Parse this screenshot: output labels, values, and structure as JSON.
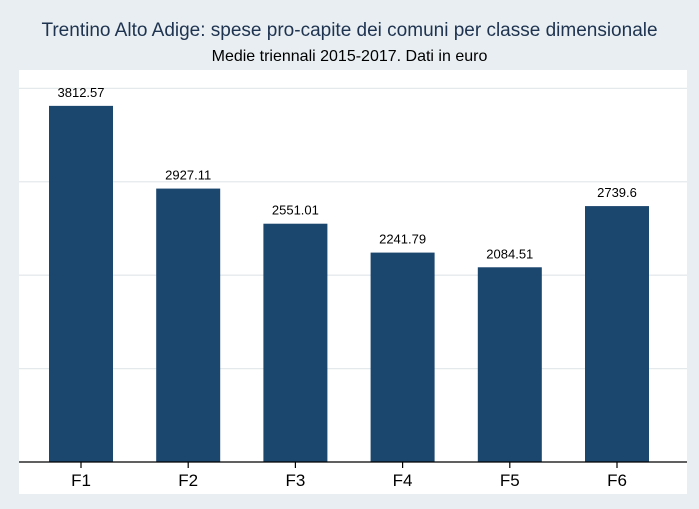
{
  "chart_data": {
    "type": "bar",
    "title": "Trentino Alto Adige: spese pro-capite dei comuni per classe dimensionale",
    "subtitle": "Medie triennali 2015-2017. Dati in euro",
    "categories": [
      "F1",
      "F2",
      "F3",
      "F4",
      "F5",
      "F6"
    ],
    "values": [
      3812.57,
      2927.11,
      2551.01,
      2241.79,
      2084.51,
      2739.6
    ],
    "value_labels": [
      "3812.57",
      "2927.11",
      "2551.01",
      "2241.79",
      "2084.51",
      "2739.6"
    ],
    "xlabel": "",
    "ylabel": "",
    "ylim": [
      0,
      4000
    ],
    "gridlines": [
      1000,
      2000,
      3000,
      4000
    ],
    "grid": true,
    "legend": "none",
    "colors": {
      "bar": "#1b466e",
      "title": "#1e3350",
      "background": "#e8eef1",
      "plot_background": "#ffffff",
      "grid": "#e4e9ec",
      "axis": "#000000"
    }
  }
}
